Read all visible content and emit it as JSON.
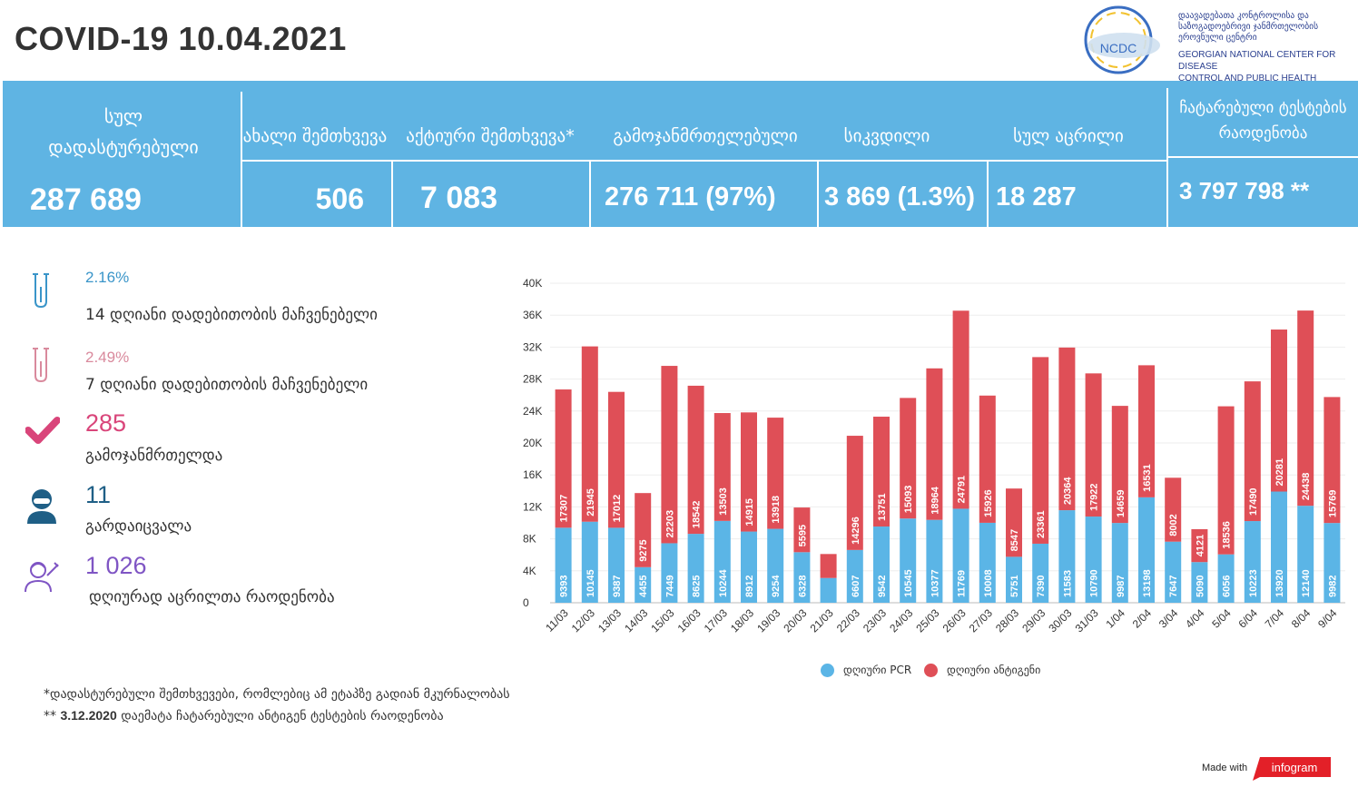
{
  "title": "COVID-19 10.04.2021",
  "logo": {
    "abbr": "NCDC",
    "ka_line1": "დაავადებათა კონტროლისა და",
    "ka_line2": "საზოგადოებრივი ჯანმრთელობის",
    "ka_line3": "ეროვნული ცენტრი",
    "en_line1": "GEORGIAN NATIONAL CENTER FOR DISEASE",
    "en_line2": "CONTROL AND PUBLIC HEALTH"
  },
  "summary": {
    "total_label_1": "სულ",
    "total_label_2": "დადასტურებული",
    "total_value": "287 689",
    "new_label": "ახალი შემთხვევა",
    "new_value": "506",
    "active_label": "აქტიური შემთხვევა*",
    "active_value": "7 083",
    "recovered_label": "გამოჯანმრთელებული",
    "recovered_value": "276 711 (97%)",
    "deaths_label": "სიკვდილი",
    "deaths_value": "3 869 (1.3%)",
    "vaccinated_label": "სულ აცრილი",
    "vaccinated_value": "18 287",
    "tests_label_1": "ჩატარებული ტესტების",
    "tests_label_2": "რაოდენობა",
    "tests_value": "3 797 798 **"
  },
  "stats": {
    "positivity14_pct": "2.16%",
    "positivity14_label": "14  დღიანი დადებითობის მაჩვენებელი",
    "positivity7_pct": "2.49%",
    "positivity7_label": "7 დღიანი დადებითობის მაჩვენებელი",
    "recovered_num": "285",
    "recovered_label": "გამოჯანმრთელდა",
    "died_num": "11",
    "died_label": "გარდაიცვალა",
    "vaccinated_num": "1 026",
    "vaccinated_label": "დღიურად აცრილთა რაოდენობა"
  },
  "colors": {
    "band": "#5fb4e3",
    "pcr": "#5bb5e6",
    "antigen": "#df4f57",
    "positivity14": "#3a95c9",
    "positivity7": "#d98a9d",
    "recovered": "#d9457a",
    "died": "#1f5f86",
    "vaccinated": "#7f55c4"
  },
  "footnotes": {
    "note1": "*დადასტურებული შემთხვევები, რომლებიც ამ ეტაპზე გადიან მკურნალობას",
    "note2_prefix": "** ",
    "note2_date": "3.12.2020",
    "note2_rest": " დაემატა ჩატარებული ანტიგენ ტესტების რაოდენობა"
  },
  "made_with": "Made with",
  "brand": "infogram",
  "chart_data": {
    "type": "bar",
    "stacked": true,
    "categories": [
      "11/03",
      "12/03",
      "13/03",
      "14/03",
      "15/03",
      "16/03",
      "17/03",
      "18/03",
      "19/03",
      "20/03",
      "21/03",
      "22/03",
      "23/03",
      "24/03",
      "25/03",
      "26/03",
      "27/03",
      "28/03",
      "29/03",
      "30/03",
      "31/03",
      "1/04",
      "2/04",
      "3/04",
      "4/04",
      "5/04",
      "6/04",
      "7/04",
      "8/04",
      "9/04"
    ],
    "series": [
      {
        "name": "დღიური PCR",
        "values": [
          9393,
          10145,
          9387,
          4455,
          7449,
          8625,
          10244,
          8912,
          9254,
          6328,
          3100,
          6607,
          9542,
          10545,
          10377,
          11769,
          10008,
          5751,
          7390,
          11583,
          10790,
          9987,
          13198,
          7647,
          5090,
          6056,
          10223,
          13920,
          12140,
          9982
        ]
      },
      {
        "name": "დღიური ანტიგენი",
        "values": [
          17307,
          21945,
          17012,
          9275,
          22203,
          18542,
          13503,
          14915,
          13918,
          5595,
          3000,
          14296,
          13751,
          15093,
          18964,
          24791,
          15926,
          8547,
          23361,
          20364,
          17922,
          14659,
          16531,
          8002,
          4121,
          18536,
          17490,
          20281,
          24438,
          15769
        ]
      }
    ],
    "shown_labels": {
      "pcr": [
        "9393",
        "10145",
        "9387",
        "4455",
        "7449",
        "8625",
        "10244",
        "8912",
        "9254",
        "6328",
        "",
        "6607",
        "9542",
        "10545",
        "10377",
        "11769",
        "10008",
        "5751",
        "7390",
        "11583",
        "10790",
        "9987",
        "13198",
        "7647",
        "5090",
        "6056",
        "10223",
        "13920",
        "12140",
        "9982"
      ],
      "antigen": [
        "17307",
        "21945",
        "17012",
        "9275",
        "22203",
        "18542",
        "13503",
        "14915",
        "13918",
        "5595",
        "",
        "14296",
        "13751",
        "15093",
        "18964",
        "24791",
        "15926",
        "8547",
        "23361",
        "20364",
        "17922",
        "14659",
        "16531",
        "8002",
        "4121",
        "18536",
        "17490",
        "20281",
        "24438",
        "15769"
      ]
    },
    "yticks": [
      "0",
      "4K",
      "8K",
      "12K",
      "16K",
      "20K",
      "24K",
      "28K",
      "32K",
      "36K",
      "40K"
    ],
    "ylim": [
      0,
      40000
    ],
    "legend_position": "bottom-center"
  }
}
